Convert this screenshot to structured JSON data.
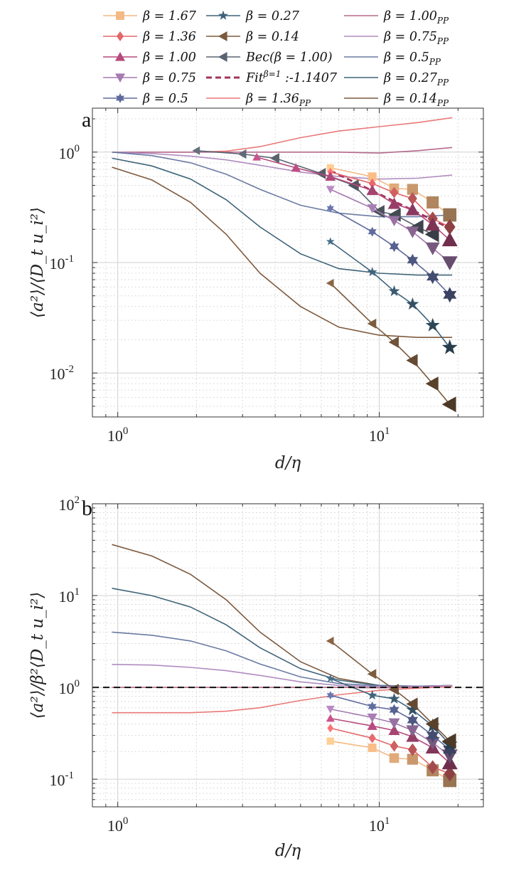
{
  "legend": [
    {
      "label": "β = 1.67",
      "color": "#F4B984",
      "marker": "square",
      "dash": false
    },
    {
      "label": "β = 1.36",
      "color": "#E2676A",
      "marker": "diamond",
      "dash": false
    },
    {
      "label": "β = 1.00",
      "color": "#B54A7C",
      "marker": "triangle-up",
      "dash": false
    },
    {
      "label": "β = 0.75",
      "color": "#A57BB0",
      "marker": "triangle-down",
      "dash": false
    },
    {
      "label": "β = 0.5",
      "color": "#5F6A9C",
      "marker": "hexagram",
      "dash": false
    },
    {
      "label": "β = 0.27",
      "color": "#3F627A",
      "marker": "pentagram",
      "dash": false
    },
    {
      "label": "β = 0.14",
      "color": "#7B5A3D",
      "marker": "triangle-left",
      "dash": false
    },
    {
      "label": "Bec(β = 1.00)",
      "color": "#5A6470",
      "marker": "triangle-left",
      "dash": false
    },
    {
      "label": "Fit^(β=1) :-1.1407",
      "color": "#A0345A",
      "marker": "none",
      "dash": true
    },
    {
      "label": "β = 1.36_PP",
      "color": "#E87A78",
      "marker": "none",
      "dash": false
    },
    {
      "label": "β = 1.00_PP",
      "color": "#B56A8C",
      "marker": "none",
      "dash": false
    },
    {
      "label": "β = 0.75_PP",
      "color": "#B08CC0",
      "marker": "none",
      "dash": false
    },
    {
      "label": "β = 0.5_PP",
      "color": "#6A7AA2",
      "marker": "none",
      "dash": false
    },
    {
      "label": "β = 0.27_PP",
      "color": "#3E6478",
      "marker": "none",
      "dash": false
    },
    {
      "label": "β = 0.14_PP",
      "color": "#7E5A3E",
      "marker": "none",
      "dash": false
    }
  ],
  "chart_data": [
    {
      "panel": "a",
      "type": "line",
      "xscale": "log",
      "yscale": "log",
      "xlim": [
        0.8,
        25
      ],
      "ylim": [
        0.004,
        2.5
      ],
      "xlabel": "d/η",
      "ylabel": "⟨a²⟩/⟨D_t u_i²⟩",
      "xticks": [
        "10^0",
        "10^1"
      ],
      "yticks": [
        "10^-2",
        "10^-1",
        "10^0"
      ],
      "series": [
        {
          "name": "β = 1.36_PP",
          "x": [
            0.95,
            1.35,
            1.9,
            2.6,
            3.5,
            5,
            7,
            10,
            14,
            19
          ],
          "y": [
            1.0,
            1.0,
            1.0,
            1.02,
            1.12,
            1.35,
            1.55,
            1.7,
            1.85,
            2.05
          ]
        },
        {
          "name": "β = 1.00_PP",
          "x": [
            0.95,
            1.35,
            1.9,
            2.6,
            3.5,
            5,
            7,
            10,
            14,
            19
          ],
          "y": [
            1.0,
            1.0,
            1.0,
            1.0,
            1.0,
            1.0,
            1.0,
            0.98,
            1.03,
            1.1
          ]
        },
        {
          "name": "β = 0.75_PP",
          "x": [
            0.95,
            1.35,
            1.9,
            2.6,
            3.5,
            5,
            7,
            10,
            14,
            19
          ],
          "y": [
            1.0,
            0.97,
            0.92,
            0.85,
            0.76,
            0.66,
            0.6,
            0.57,
            0.58,
            0.62
          ]
        },
        {
          "name": "β = 0.5_PP",
          "x": [
            0.95,
            1.35,
            1.9,
            2.6,
            3.5,
            5,
            7,
            10,
            14,
            19
          ],
          "y": [
            1.0,
            0.93,
            0.8,
            0.63,
            0.46,
            0.33,
            0.28,
            0.26,
            0.26,
            0.27
          ]
        },
        {
          "name": "β = 0.27_PP",
          "x": [
            0.95,
            1.35,
            1.9,
            2.6,
            3.5,
            5,
            7,
            10,
            14,
            19
          ],
          "y": [
            0.88,
            0.75,
            0.57,
            0.37,
            0.21,
            0.12,
            0.088,
            0.08,
            0.077,
            0.077
          ]
        },
        {
          "name": "β = 0.14_PP",
          "x": [
            0.95,
            1.35,
            1.9,
            2.6,
            3.5,
            5,
            7,
            10,
            14,
            19
          ],
          "y": [
            0.73,
            0.56,
            0.35,
            0.18,
            0.08,
            0.04,
            0.026,
            0.022,
            0.021,
            0.021
          ]
        },
        {
          "name": "Fit^(β=1) :-1.1407",
          "x": [
            6.5,
            19
          ],
          "y": [
            0.68,
            0.2
          ]
        },
        {
          "name": "Bec(β = 1.00)",
          "x": [
            2.0,
            3.0,
            4.0,
            6.0,
            8.0,
            10.0,
            11.5,
            14.0,
            16.0
          ],
          "y": [
            1.03,
            0.96,
            0.88,
            0.64,
            0.5,
            0.29,
            0.27,
            0.21,
            0.18
          ]
        },
        {
          "name": "β = 1.67",
          "x": [
            6.5,
            9.4,
            11.4,
            13.4,
            16.0,
            18.6
          ],
          "y": [
            0.72,
            0.6,
            0.47,
            0.46,
            0.35,
            0.27
          ]
        },
        {
          "name": "β = 1.36",
          "x": [
            6.5,
            9.4,
            11.4,
            13.4,
            16.0,
            18.6
          ],
          "y": [
            0.66,
            0.52,
            0.43,
            0.38,
            0.25,
            0.21
          ]
        },
        {
          "name": "β = 1.00",
          "x": [
            3.4,
            4.8,
            6.5,
            9.4,
            11.4,
            13.4,
            16.0,
            18.6
          ],
          "y": [
            0.9,
            0.72,
            0.6,
            0.45,
            0.34,
            0.3,
            0.22,
            0.16
          ]
        },
        {
          "name": "β = 0.75",
          "x": [
            6.5,
            9.4,
            11.4,
            13.4,
            16.0,
            18.6
          ],
          "y": [
            0.46,
            0.31,
            0.24,
            0.19,
            0.135,
            0.1
          ]
        },
        {
          "name": "β = 0.5",
          "x": [
            6.5,
            9.4,
            11.4,
            13.4,
            16.0,
            18.6
          ],
          "y": [
            0.31,
            0.19,
            0.14,
            0.105,
            0.074,
            0.051
          ]
        },
        {
          "name": "β = 0.27",
          "x": [
            6.5,
            9.4,
            11.4,
            13.4,
            16.0,
            18.6
          ],
          "y": [
            0.155,
            0.082,
            0.055,
            0.042,
            0.027,
            0.017
          ]
        },
        {
          "name": "β = 0.14",
          "x": [
            6.5,
            9.4,
            11.4,
            13.4,
            16.0,
            18.6
          ],
          "y": [
            0.065,
            0.028,
            0.019,
            0.013,
            0.008,
            0.0052
          ]
        }
      ]
    },
    {
      "panel": "b",
      "type": "line",
      "xscale": "log",
      "yscale": "log",
      "xlim": [
        0.8,
        25
      ],
      "ylim": [
        0.05,
        100
      ],
      "xlabel": "d/η",
      "ylabel": "⟨a²⟩/β²⟨D_t u_i²⟩",
      "xticks": [
        "10^0",
        "10^1"
      ],
      "yticks": [
        "10^-1",
        "10^0",
        "10^1",
        "10^2"
      ],
      "reference_line": 1.0,
      "series": [
        {
          "name": "β = 0.14_PP",
          "x": [
            0.95,
            1.35,
            1.9,
            2.6,
            3.5,
            5,
            7,
            10,
            14,
            19
          ],
          "y": [
            36,
            27,
            17,
            9,
            4,
            1.9,
            1.25,
            1.05,
            1.03,
            1.05
          ]
        },
        {
          "name": "β = 0.27_PP",
          "x": [
            0.95,
            1.35,
            1.9,
            2.6,
            3.5,
            5,
            7,
            10,
            14,
            19
          ],
          "y": [
            12,
            10,
            7.5,
            4.8,
            2.7,
            1.6,
            1.2,
            1.05,
            1.03,
            1.05
          ]
        },
        {
          "name": "β = 0.5_PP",
          "x": [
            0.95,
            1.35,
            1.9,
            2.6,
            3.5,
            5,
            7,
            10,
            14,
            19
          ],
          "y": [
            4,
            3.7,
            3.2,
            2.5,
            1.8,
            1.3,
            1.1,
            1.04,
            1.03,
            1.05
          ]
        },
        {
          "name": "β = 0.75_PP",
          "x": [
            0.95,
            1.35,
            1.9,
            2.6,
            3.5,
            5,
            7,
            10,
            14,
            19
          ],
          "y": [
            1.78,
            1.75,
            1.65,
            1.52,
            1.35,
            1.15,
            1.05,
            1.02,
            1.02,
            1.05
          ]
        },
        {
          "name": "β = 1.00_PP",
          "x": [
            0.95,
            1.35,
            1.9,
            2.6,
            3.5,
            5,
            7,
            10,
            14,
            19
          ],
          "y": [
            1.0,
            1.0,
            1.0,
            1.0,
            1.0,
            1.0,
            1.0,
            0.99,
            1.0,
            1.02
          ]
        },
        {
          "name": "β = 1.36_PP",
          "x": [
            0.95,
            1.35,
            1.9,
            2.6,
            3.5,
            5,
            7,
            10,
            14,
            19
          ],
          "y": [
            0.53,
            0.53,
            0.53,
            0.55,
            0.6,
            0.72,
            0.83,
            0.93,
            0.98,
            1.02
          ]
        },
        {
          "name": "β = 1.67",
          "x": [
            6.5,
            9.4,
            11.4,
            13.4,
            16.0,
            18.6
          ],
          "y": [
            0.26,
            0.22,
            0.17,
            0.165,
            0.125,
            0.097
          ]
        },
        {
          "name": "β = 1.36",
          "x": [
            6.5,
            9.4,
            11.4,
            13.4,
            16.0,
            18.6
          ],
          "y": [
            0.36,
            0.28,
            0.23,
            0.21,
            0.135,
            0.115
          ]
        },
        {
          "name": "β = 1.00",
          "x": [
            6.5,
            9.4,
            11.4,
            13.4,
            16.0,
            18.6
          ],
          "y": [
            0.46,
            0.38,
            0.34,
            0.29,
            0.22,
            0.15
          ]
        },
        {
          "name": "β = 0.75",
          "x": [
            6.5,
            9.4,
            11.4,
            13.4,
            16.0,
            18.6
          ],
          "y": [
            0.58,
            0.47,
            0.41,
            0.34,
            0.25,
            0.18
          ]
        },
        {
          "name": "β = 0.5",
          "x": [
            6.5,
            9.4,
            11.4,
            13.4,
            16.0,
            18.6
          ],
          "y": [
            0.82,
            0.62,
            0.57,
            0.44,
            0.3,
            0.21
          ]
        },
        {
          "name": "β = 0.27",
          "x": [
            6.5,
            9.4,
            11.4,
            13.4,
            16.0,
            18.6
          ],
          "y": [
            1.25,
            0.82,
            0.75,
            0.57,
            0.38,
            0.24
          ]
        },
        {
          "name": "β = 0.14",
          "x": [
            6.5,
            9.4,
            11.4,
            13.4,
            16.0,
            18.6
          ],
          "y": [
            3.2,
            1.4,
            0.95,
            0.66,
            0.4,
            0.26
          ]
        }
      ]
    }
  ]
}
